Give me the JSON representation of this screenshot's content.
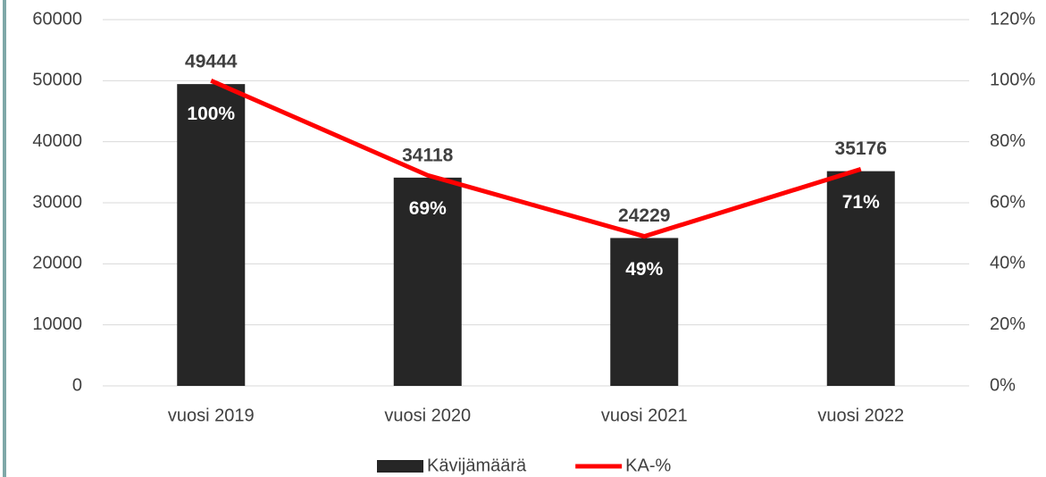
{
  "chart_data": {
    "type": "bar",
    "categories": [
      "vuosi 2019",
      "vuosi 2020",
      "vuosi 2021",
      "vuosi 2022"
    ],
    "series": [
      {
        "name": "Kävijämäärä",
        "type": "bar",
        "color": "#262626",
        "values": [
          49444,
          34118,
          24229,
          35176
        ]
      },
      {
        "name": "KA-%",
        "type": "line",
        "axis": "y2",
        "color": "#ff0000",
        "values": [
          100,
          69,
          49,
          71
        ],
        "value_labels": [
          "100%",
          "69%",
          "49%",
          "71%"
        ]
      }
    ],
    "ylim": [
      0,
      60000
    ],
    "yticks": [
      0,
      10000,
      20000,
      30000,
      40000,
      50000,
      60000
    ],
    "y2lim": [
      0,
      120
    ],
    "y2ticks": [
      {
        "value": 0,
        "label": "0%"
      },
      {
        "value": 20,
        "label": "20%"
      },
      {
        "value": 40,
        "label": "40%"
      },
      {
        "value": 60,
        "label": "60%"
      },
      {
        "value": 80,
        "label": "80%"
      },
      {
        "value": 100,
        "label": "100%"
      },
      {
        "value": 120,
        "label": "120%"
      }
    ],
    "grid": true,
    "legend": "bottom"
  }
}
